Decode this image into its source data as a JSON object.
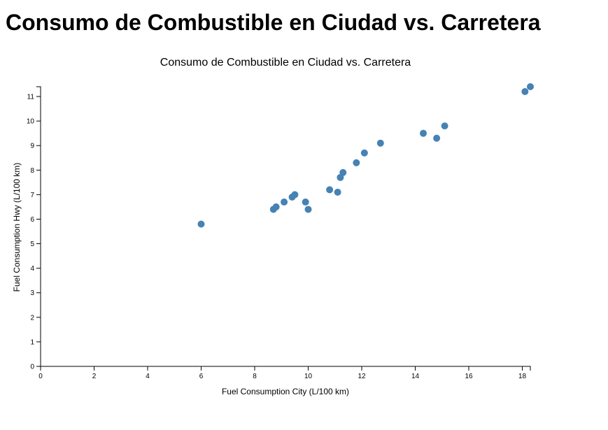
{
  "page": {
    "heading": "Consumo de Combustible en Ciudad vs. Carretera"
  },
  "chart_data": {
    "type": "scatter",
    "title": "Consumo de Combustible en Ciudad vs. Carretera",
    "xlabel": "Fuel Consumption City (L/100 km)",
    "ylabel": "Fuel Consumption Hwy (L/100 km)",
    "xlim": [
      0,
      18.3
    ],
    "ylim": [
      0,
      11.4
    ],
    "x_ticks": [
      "0",
      "2",
      "4",
      "6",
      "8",
      "10",
      "12",
      "14",
      "16",
      "18"
    ],
    "y_ticks": [
      "0",
      "1",
      "2",
      "3",
      "4",
      "5",
      "6",
      "7",
      "8",
      "9",
      "10",
      "11"
    ],
    "grid": false,
    "point_color": "#4682b4",
    "points": [
      {
        "x": 6.0,
        "y": 5.8
      },
      {
        "x": 8.7,
        "y": 6.4
      },
      {
        "x": 8.8,
        "y": 6.5
      },
      {
        "x": 9.1,
        "y": 6.7
      },
      {
        "x": 9.4,
        "y": 6.9
      },
      {
        "x": 9.5,
        "y": 7.0
      },
      {
        "x": 9.9,
        "y": 6.7
      },
      {
        "x": 10.0,
        "y": 6.4
      },
      {
        "x": 10.8,
        "y": 7.2
      },
      {
        "x": 11.1,
        "y": 7.1
      },
      {
        "x": 11.2,
        "y": 7.7
      },
      {
        "x": 11.3,
        "y": 7.9
      },
      {
        "x": 11.8,
        "y": 8.3
      },
      {
        "x": 12.1,
        "y": 8.7
      },
      {
        "x": 12.7,
        "y": 9.1
      },
      {
        "x": 14.3,
        "y": 9.5
      },
      {
        "x": 14.8,
        "y": 9.3
      },
      {
        "x": 15.1,
        "y": 9.8
      },
      {
        "x": 18.1,
        "y": 11.2
      },
      {
        "x": 18.3,
        "y": 11.4
      }
    ]
  }
}
